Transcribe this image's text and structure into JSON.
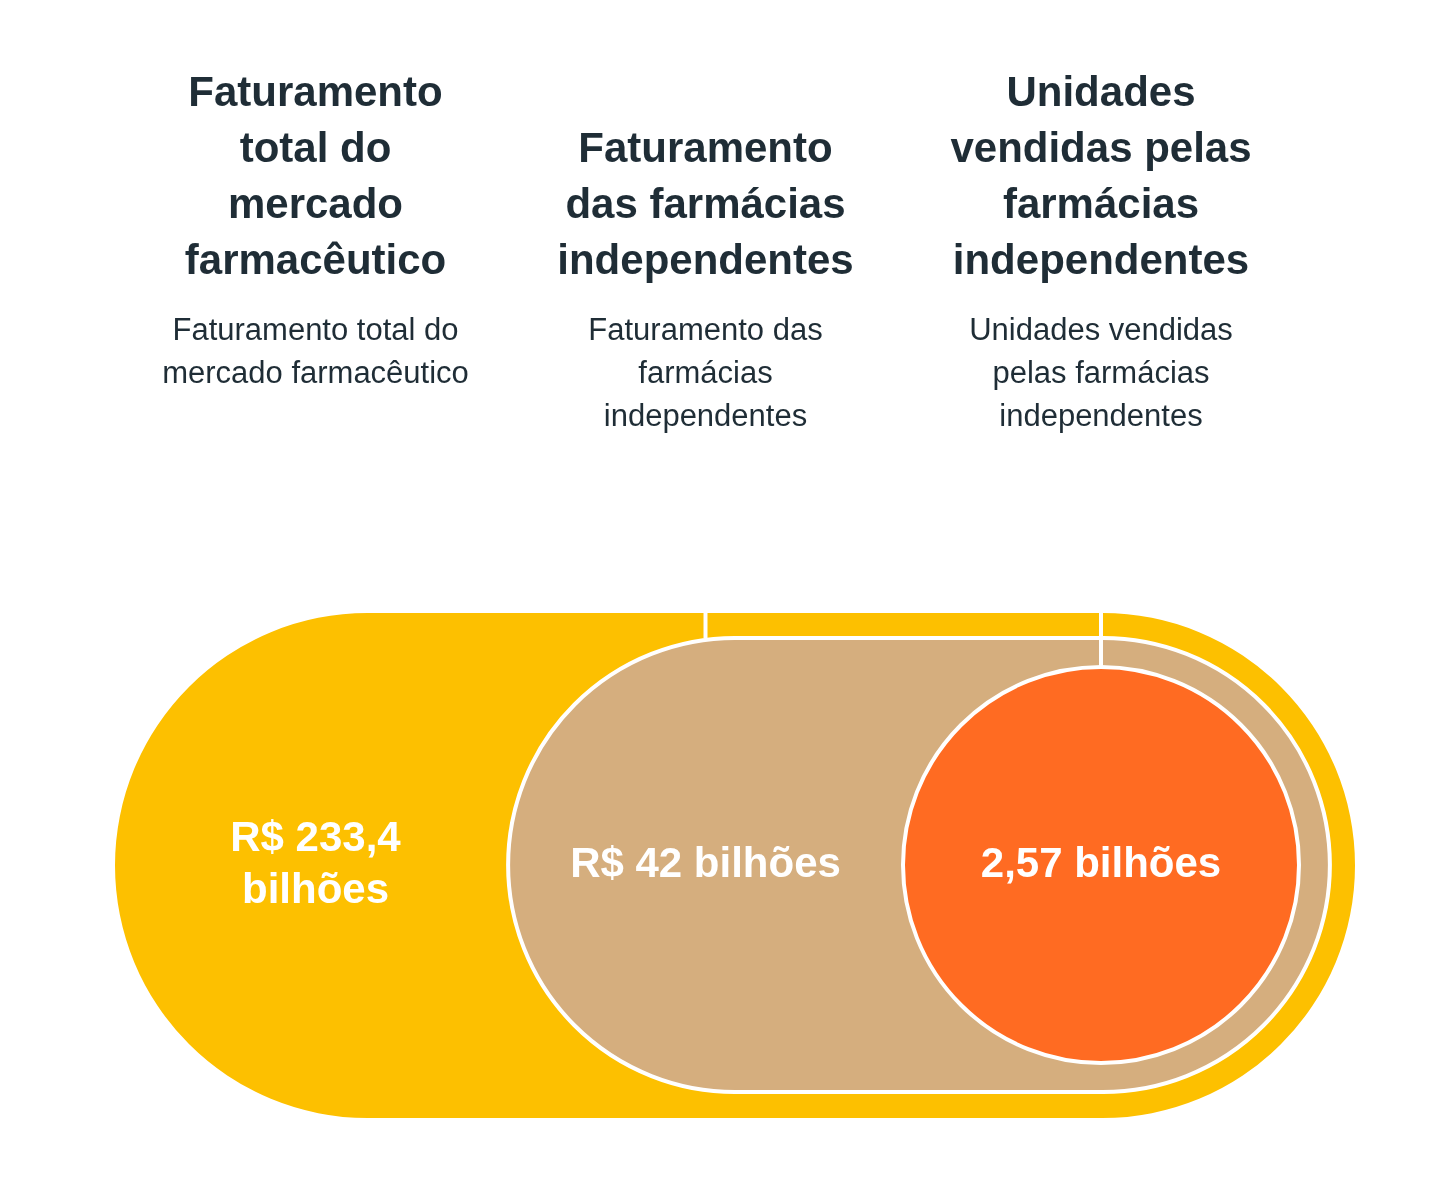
{
  "chart_data": {
    "type": "other",
    "categories": [
      "Faturamento total do mercado farmacêutico",
      "Faturamento das farmácias independentes",
      "Unidades vendidas pelas farmácias independentes"
    ],
    "annotations": [
      "Faturamento total do mercado farmacêutico",
      "Faturamento das farmácias independentes",
      "Unidades vendidas pelas farmácias independentes"
    ],
    "values": [
      233.4,
      42,
      2.57
    ],
    "value_labels": [
      "R$ 233,4 bilhões",
      "R$ 42 bilhões",
      "2,57 bilhões"
    ],
    "colors": [
      "#fdc000",
      "#d5ae7e",
      "#ff6b22"
    ]
  }
}
